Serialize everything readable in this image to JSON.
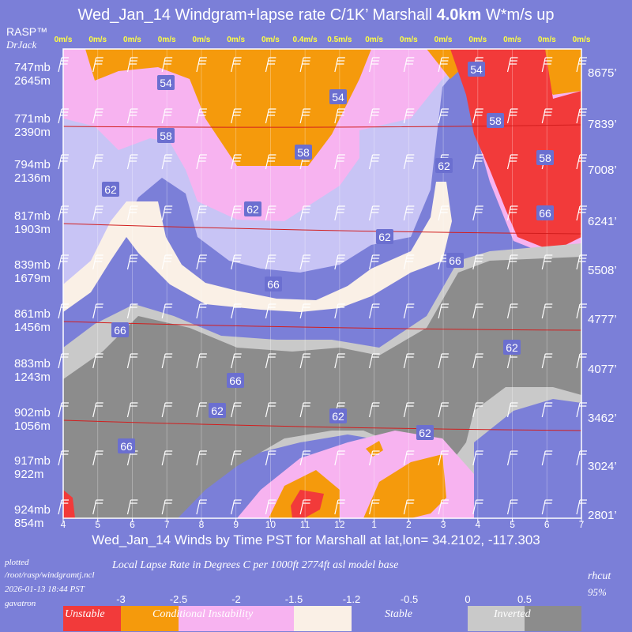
{
  "header": {
    "title_main": "Wed_Jan_14 Windgram+lapse rate C/1K’  Marshall ",
    "title_bold": "4.0km",
    "title_tail": "  W*m/s up",
    "brand": "RASP™",
    "brand_sub": "DrJack"
  },
  "side_labels": {
    "left_mb": [
      "747mb",
      "771mb",
      "794mb",
      "817mb",
      "839mb",
      "861mb",
      "883mb",
      "902mb",
      "917mb",
      "924mb"
    ],
    "left_m": [
      "2645m",
      "2390m",
      "2136m",
      "1903m",
      "1679m",
      "1456m",
      "1243m",
      "1056m",
      "922m",
      "854m"
    ],
    "right_ft": [
      "8675’",
      "7839’",
      "7008’",
      "6241’",
      "5508’",
      "4777’",
      "4077’",
      "3462’",
      "3024’",
      "2801’"
    ]
  },
  "w_star_labels": [
    "0m/s",
    "0m/s",
    "0m/s",
    "0m/s",
    "0m/s",
    "0m/s",
    "0m/s",
    "0.4m/s",
    "0.5m/s",
    "0m/s",
    "0m/s",
    "0m/s",
    "0m/s",
    "0m/s",
    "0m/s",
    "0m/s"
  ],
  "x_title": "Wed_Jan_14 Winds by Time PST for Marshall at lat,lon= 34.2102, -117.303",
  "footer": {
    "plotted": "plotted",
    "path": "/root/rasp/windgramtj.ncl",
    "timestamp": "2026-01-13 18:44 PST",
    "user": "gavatron",
    "caption": "Local Lapse Rate in Degrees C per 1000ft  2774ft asl model base",
    "rhcut": "rhcut",
    "rhcut_value": "95%"
  },
  "legend": {
    "ticks": [
      "-3",
      "-2.5",
      "-2",
      "-1.5",
      "-1.2",
      "-0.5",
      "0",
      "0.5"
    ],
    "labels": [
      "Unstable",
      "Conditional Instability",
      "Stable",
      "Inverted"
    ],
    "colors": [
      "#f23a3a",
      "#f59a0c",
      "#f7b3f0",
      "#faf0e6",
      "#7b7fd8",
      "#c9c9c9",
      "#8c8c8c"
    ]
  },
  "chart_data": {
    "type": "heatmap",
    "title": "Wed_Jan_14 Windgram+lapse rate C/1K’  Marshall 4.0km  W*m/s up",
    "xlabel": "Wed_Jan_14 Winds by Time PST for Marshall at lat,lon= 34.2102, -117.303",
    "x": [
      "4",
      "5",
      "6",
      "7",
      "8",
      "9",
      "10",
      "11",
      "12",
      "1",
      "2",
      "3",
      "4",
      "5",
      "6",
      "7"
    ],
    "y_pressure_mb": [
      747,
      771,
      794,
      817,
      839,
      861,
      883,
      902,
      917,
      924
    ],
    "y_height_m": [
      2645,
      2390,
      2136,
      1903,
      1679,
      1456,
      1243,
      1056,
      922,
      854
    ],
    "y_height_ft": [
      8675,
      7839,
      7008,
      6241,
      5508,
      4777,
      4077,
      3462,
      3024,
      2801
    ],
    "w_star_ms": [
      0,
      0,
      0,
      0,
      0,
      0,
      0,
      0.4,
      0.5,
      0,
      0,
      0,
      0,
      0,
      0,
      0
    ],
    "contour_labels": [
      "54",
      "54",
      "54",
      "58",
      "58",
      "58",
      "58",
      "62",
      "62",
      "62",
      "62",
      "62",
      "62",
      "62",
      "62",
      "66",
      "66",
      "66",
      "66",
      "66",
      "66"
    ],
    "colorscale": {
      "-3": "#f23a3a",
      "-2.5": "#f59a0c",
      "-2": "#f7b3f0",
      "-1.5": "#f7b3f0",
      "-1.2": "#faf0e6",
      "-0.5": "#7b7fd8",
      "0": "#c9c9c9",
      "0.5": "#8c8c8c"
    }
  }
}
